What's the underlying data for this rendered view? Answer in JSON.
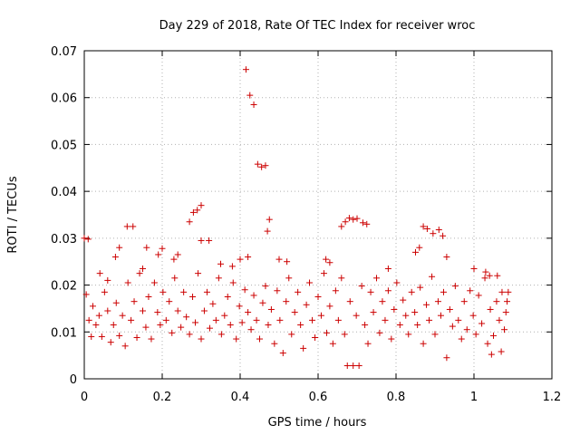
{
  "chart_data": {
    "type": "scatter",
    "title": "Day 229 of 2018, Rate Of TEC Index for receiver wroc",
    "xlabel": "GPS time / hours",
    "ylabel": "ROTI / TECUs",
    "xlim": [
      0,
      1.2
    ],
    "ylim": [
      0,
      0.07
    ],
    "x_ticks": [
      0,
      0.2,
      0.4,
      0.6,
      0.8,
      1.0,
      1.2
    ],
    "x_tick_labels": [
      "0",
      "0.2",
      "0.4",
      "0.6",
      "0.8",
      "1",
      "1.2"
    ],
    "y_ticks": [
      0,
      0.01,
      0.02,
      0.03,
      0.04,
      0.05,
      0.06,
      0.07
    ],
    "y_tick_labels": [
      "0",
      "0.01",
      "0.02",
      "0.03",
      "0.04",
      "0.05",
      "0.06",
      "0.07"
    ],
    "grid": true,
    "marker": "+",
    "color": "#cc0000",
    "series": [
      {
        "name": "ROTI",
        "points": [
          [
            0.415,
            0.066
          ],
          [
            0.425,
            0.0605
          ],
          [
            0.435,
            0.0585
          ],
          [
            0.445,
            0.0458
          ],
          [
            0.455,
            0.0452
          ],
          [
            0.465,
            0.0455
          ],
          [
            0.0,
            0.03
          ],
          [
            0.01,
            0.0298
          ],
          [
            0.11,
            0.0325
          ],
          [
            0.125,
            0.0325
          ],
          [
            0.27,
            0.0335
          ],
          [
            0.28,
            0.0355
          ],
          [
            0.29,
            0.036
          ],
          [
            0.3,
            0.037
          ],
          [
            0.3,
            0.0295
          ],
          [
            0.32,
            0.0295
          ],
          [
            0.475,
            0.034
          ],
          [
            0.47,
            0.0315
          ],
          [
            0.66,
            0.0325
          ],
          [
            0.67,
            0.0335
          ],
          [
            0.68,
            0.0343
          ],
          [
            0.69,
            0.034
          ],
          [
            0.7,
            0.0342
          ],
          [
            0.715,
            0.0333
          ],
          [
            0.725,
            0.033
          ],
          [
            0.87,
            0.0325
          ],
          [
            0.88,
            0.032
          ],
          [
            0.895,
            0.031
          ],
          [
            0.91,
            0.0318
          ],
          [
            0.92,
            0.0305
          ],
          [
            0.2,
            0.0278
          ],
          [
            0.23,
            0.0255
          ],
          [
            0.35,
            0.0245
          ],
          [
            0.38,
            0.024
          ],
          [
            0.4,
            0.0255
          ],
          [
            0.42,
            0.026
          ],
          [
            0.5,
            0.0255
          ],
          [
            0.52,
            0.025
          ],
          [
            0.62,
            0.0255
          ],
          [
            0.63,
            0.0248
          ],
          [
            0.78,
            0.0235
          ],
          [
            0.85,
            0.027
          ],
          [
            0.86,
            0.028
          ],
          [
            0.93,
            0.026
          ],
          [
            1.0,
            0.0235
          ],
          [
            1.03,
            0.0228
          ],
          [
            0.04,
            0.0225
          ],
          [
            0.06,
            0.021
          ],
          [
            0.08,
            0.026
          ],
          [
            0.09,
            0.028
          ],
          [
            0.15,
            0.0235
          ],
          [
            0.16,
            0.028
          ],
          [
            0.19,
            0.0265
          ],
          [
            0.24,
            0.0265
          ],
          [
            0.005,
            0.018
          ],
          [
            0.012,
            0.0125
          ],
          [
            0.018,
            0.009
          ],
          [
            0.022,
            0.0155
          ],
          [
            0.03,
            0.0115
          ],
          [
            0.038,
            0.0135
          ],
          [
            0.045,
            0.009
          ],
          [
            0.052,
            0.0185
          ],
          [
            0.06,
            0.0145
          ],
          [
            0.068,
            0.0078
          ],
          [
            0.075,
            0.0115
          ],
          [
            0.082,
            0.0162
          ],
          [
            0.09,
            0.0092
          ],
          [
            0.098,
            0.0135
          ],
          [
            0.105,
            0.007
          ],
          [
            0.112,
            0.0205
          ],
          [
            0.12,
            0.0125
          ],
          [
            0.128,
            0.0165
          ],
          [
            0.135,
            0.0088
          ],
          [
            0.142,
            0.0225
          ],
          [
            0.15,
            0.0145
          ],
          [
            0.158,
            0.011
          ],
          [
            0.165,
            0.0175
          ],
          [
            0.172,
            0.0085
          ],
          [
            0.18,
            0.0205
          ],
          [
            0.188,
            0.0142
          ],
          [
            0.195,
            0.0115
          ],
          [
            0.202,
            0.0185
          ],
          [
            0.21,
            0.0125
          ],
          [
            0.218,
            0.0165
          ],
          [
            0.225,
            0.0098
          ],
          [
            0.232,
            0.0215
          ],
          [
            0.24,
            0.0145
          ],
          [
            0.248,
            0.011
          ],
          [
            0.255,
            0.0185
          ],
          [
            0.262,
            0.0132
          ],
          [
            0.27,
            0.0095
          ],
          [
            0.278,
            0.0175
          ],
          [
            0.285,
            0.012
          ],
          [
            0.292,
            0.0225
          ],
          [
            0.3,
            0.0085
          ],
          [
            0.308,
            0.0145
          ],
          [
            0.315,
            0.0185
          ],
          [
            0.322,
            0.0108
          ],
          [
            0.33,
            0.016
          ],
          [
            0.338,
            0.0125
          ],
          [
            0.345,
            0.0215
          ],
          [
            0.352,
            0.0095
          ],
          [
            0.36,
            0.0135
          ],
          [
            0.368,
            0.0175
          ],
          [
            0.375,
            0.0115
          ],
          [
            0.382,
            0.0205
          ],
          [
            0.39,
            0.0085
          ],
          [
            0.398,
            0.0155
          ],
          [
            0.405,
            0.012
          ],
          [
            0.412,
            0.019
          ],
          [
            0.42,
            0.0142
          ],
          [
            0.428,
            0.0105
          ],
          [
            0.435,
            0.0178
          ],
          [
            0.442,
            0.0125
          ],
          [
            0.45,
            0.0085
          ],
          [
            0.458,
            0.0162
          ],
          [
            0.465,
            0.0198
          ],
          [
            0.472,
            0.0115
          ],
          [
            0.48,
            0.0148
          ],
          [
            0.488,
            0.0075
          ],
          [
            0.495,
            0.0188
          ],
          [
            0.502,
            0.0125
          ],
          [
            0.51,
            0.0055
          ],
          [
            0.518,
            0.0165
          ],
          [
            0.525,
            0.0215
          ],
          [
            0.532,
            0.0095
          ],
          [
            0.54,
            0.0142
          ],
          [
            0.548,
            0.0185
          ],
          [
            0.555,
            0.0115
          ],
          [
            0.562,
            0.0065
          ],
          [
            0.57,
            0.0158
          ],
          [
            0.578,
            0.0205
          ],
          [
            0.585,
            0.0125
          ],
          [
            0.592,
            0.0088
          ],
          [
            0.6,
            0.0175
          ],
          [
            0.608,
            0.0135
          ],
          [
            0.615,
            0.0225
          ],
          [
            0.622,
            0.0098
          ],
          [
            0.63,
            0.0155
          ],
          [
            0.638,
            0.0075
          ],
          [
            0.645,
            0.0188
          ],
          [
            0.652,
            0.0125
          ],
          [
            0.66,
            0.0215
          ],
          [
            0.668,
            0.0095
          ],
          [
            0.675,
            0.0028
          ],
          [
            0.682,
            0.0165
          ],
          [
            0.69,
            0.0028
          ],
          [
            0.698,
            0.0135
          ],
          [
            0.705,
            0.0028
          ],
          [
            0.712,
            0.0198
          ],
          [
            0.72,
            0.0115
          ],
          [
            0.728,
            0.0075
          ],
          [
            0.735,
            0.0185
          ],
          [
            0.742,
            0.0142
          ],
          [
            0.75,
            0.0215
          ],
          [
            0.758,
            0.0098
          ],
          [
            0.765,
            0.0165
          ],
          [
            0.772,
            0.0125
          ],
          [
            0.78,
            0.0188
          ],
          [
            0.788,
            0.0085
          ],
          [
            0.795,
            0.0148
          ],
          [
            0.802,
            0.0205
          ],
          [
            0.81,
            0.0115
          ],
          [
            0.818,
            0.0168
          ],
          [
            0.825,
            0.0135
          ],
          [
            0.832,
            0.0095
          ],
          [
            0.84,
            0.0185
          ],
          [
            0.848,
            0.0142
          ],
          [
            0.855,
            0.0115
          ],
          [
            0.862,
            0.0195
          ],
          [
            0.87,
            0.0075
          ],
          [
            0.878,
            0.0158
          ],
          [
            0.885,
            0.0125
          ],
          [
            0.892,
            0.0218
          ],
          [
            0.9,
            0.0095
          ],
          [
            0.908,
            0.0165
          ],
          [
            0.915,
            0.0135
          ],
          [
            0.922,
            0.0185
          ],
          [
            0.93,
            0.0045
          ],
          [
            0.938,
            0.0148
          ],
          [
            0.945,
            0.0112
          ],
          [
            0.952,
            0.0198
          ],
          [
            0.96,
            0.0125
          ],
          [
            0.968,
            0.0085
          ],
          [
            0.975,
            0.0165
          ],
          [
            0.982,
            0.0105
          ],
          [
            0.99,
            0.0188
          ],
          [
            0.998,
            0.0135
          ],
          [
            1.005,
            0.0095
          ],
          [
            1.012,
            0.0178
          ],
          [
            1.02,
            0.0118
          ],
          [
            1.028,
            0.0215
          ],
          [
            1.035,
            0.0075
          ],
          [
            1.042,
            0.0148
          ],
          [
            1.05,
            0.0092
          ],
          [
            1.058,
            0.0165
          ],
          [
            1.065,
            0.0125
          ],
          [
            1.072,
            0.0185
          ],
          [
            1.078,
            0.0105
          ],
          [
            1.085,
            0.0165
          ],
          [
            1.088,
            0.0185
          ],
          [
            1.082,
            0.0142
          ],
          [
            1.07,
            0.0058
          ],
          [
            1.045,
            0.0052
          ],
          [
            1.04,
            0.022
          ],
          [
            1.06,
            0.022
          ]
        ]
      }
    ]
  }
}
